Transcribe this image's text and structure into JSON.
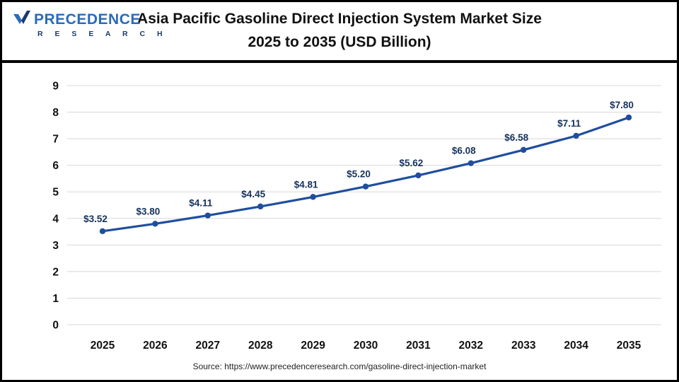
{
  "header": {
    "title_line1": "Asia Pacific Gasoline Direct Injection System Market Size",
    "title_line2": "2025 to 2035 (USD Billion)"
  },
  "logo": {
    "name": "PRECEDENCE",
    "sub": "R E S E A R C H"
  },
  "footer": {
    "source": "Source: https://www.precedenceresearch.com/gasoline-direct-injection-market"
  },
  "chart_data": {
    "type": "line",
    "title": "Asia Pacific Gasoline Direct Injection System Market Size 2025 to 2035 (USD Billion)",
    "categories": [
      "2025",
      "2026",
      "2027",
      "2028",
      "2029",
      "2030",
      "2031",
      "2032",
      "2033",
      "2034",
      "2035"
    ],
    "values": [
      3.52,
      3.8,
      4.11,
      4.45,
      4.81,
      5.2,
      5.62,
      6.08,
      6.58,
      7.11,
      7.8
    ],
    "point_labels": [
      "$3.52",
      "$3.80",
      "$4.11",
      "$4.45",
      "$4.81",
      "$5.20",
      "$5.62",
      "$6.08",
      "$6.58",
      "$7.11",
      "$7.80"
    ],
    "xlabel": "",
    "ylabel": "",
    "ylim": [
      0,
      9
    ],
    "yticks": [
      0,
      1,
      2,
      3,
      4,
      5,
      6,
      7,
      8,
      9
    ],
    "grid": true,
    "legend": "none",
    "line_color": "#1f4e9e",
    "marker_color": "#1f4e9e",
    "label_color": "#16325c",
    "grid_color": "#d8d8d8",
    "tick_color": "#111111"
  }
}
